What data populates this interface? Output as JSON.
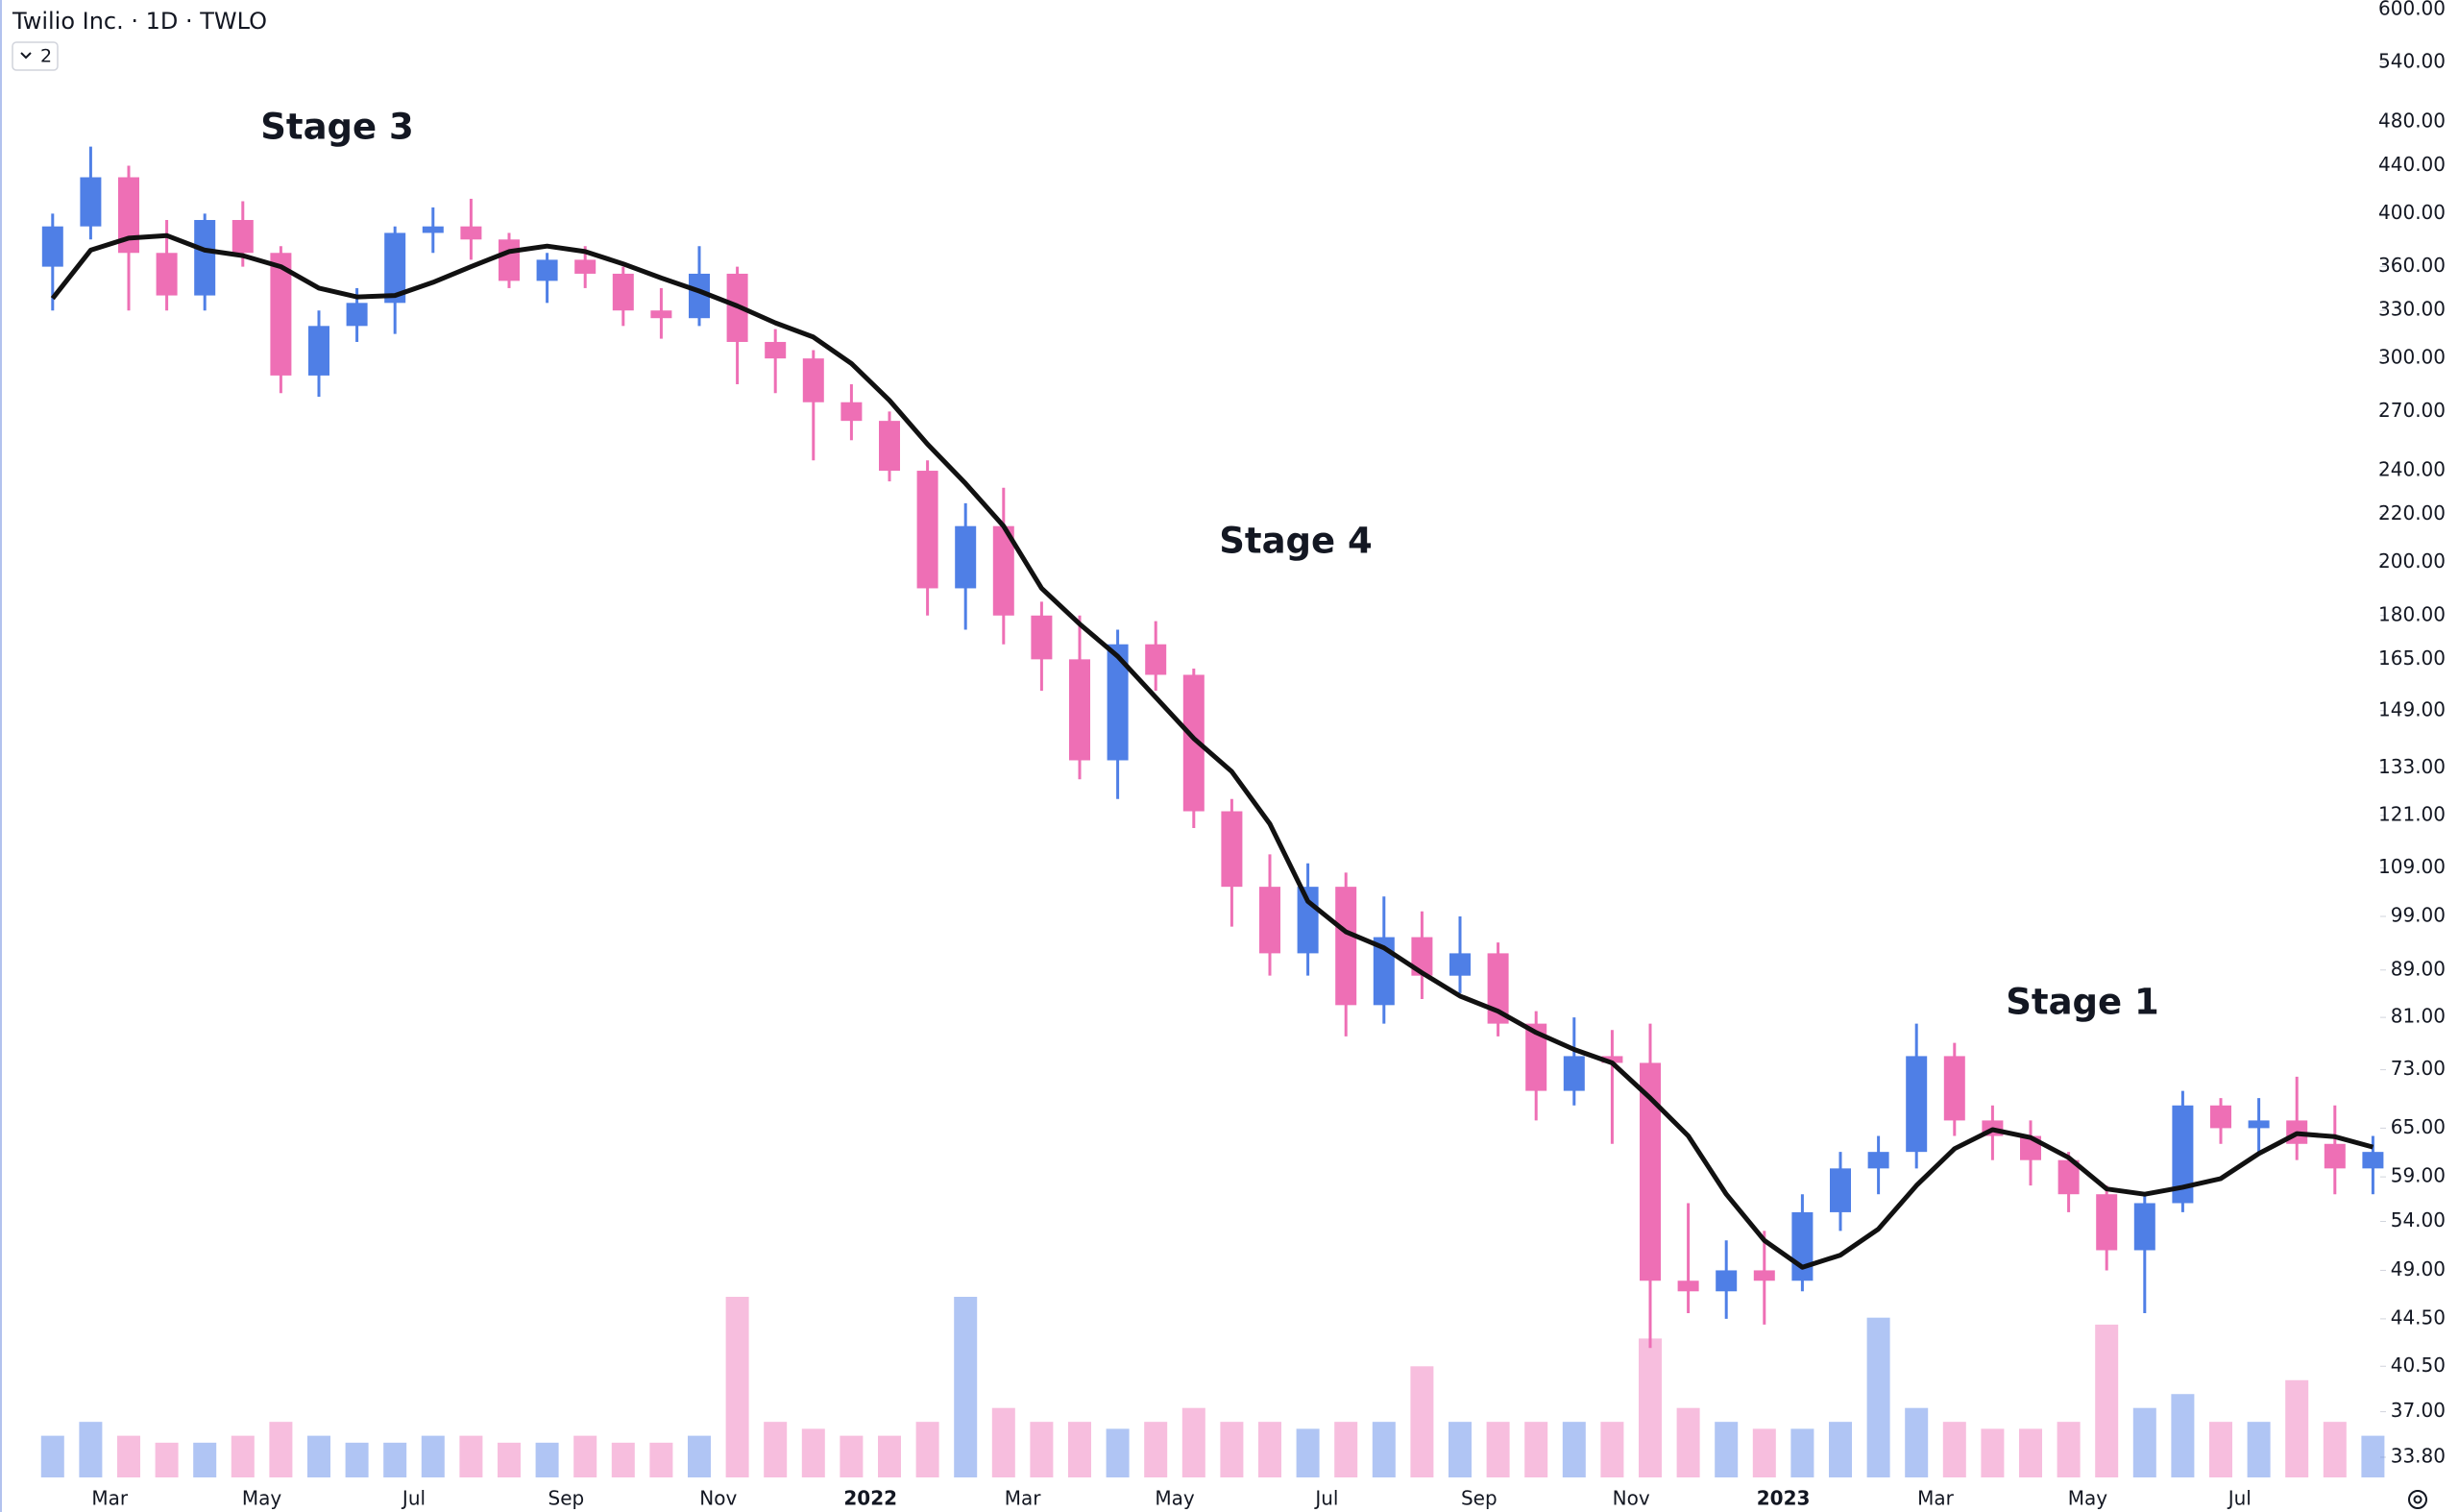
{
  "chart_data": {
    "type": "candlestick",
    "title": "Twilio Inc. · 1D · TWLO",
    "legend_badge": "2",
    "log_scale": true,
    "categories": [
      null,
      null,
      "Mar",
      null,
      null,
      null,
      "May",
      null,
      null,
      null,
      "Jul",
      null,
      null,
      null,
      "Sep",
      null,
      null,
      null,
      "Nov",
      null,
      null,
      null,
      "2022",
      null,
      null,
      null,
      "Mar",
      null,
      null,
      null,
      "May",
      null,
      null,
      null,
      "Jul",
      null,
      null,
      null,
      "Sep",
      null,
      null,
      null,
      "Nov",
      null,
      null,
      null,
      "2023",
      null,
      null,
      null,
      "Mar",
      null,
      null,
      null,
      "May",
      null,
      null,
      null,
      "Jul",
      null,
      null,
      null
    ],
    "open": [
      360,
      390,
      430,
      370,
      340,
      395,
      370,
      290,
      320,
      335,
      385,
      390,
      380,
      350,
      365,
      355,
      330,
      325,
      355,
      310,
      300,
      275,
      265,
      240,
      190,
      215,
      180,
      165,
      135,
      170,
      160,
      122,
      105,
      92,
      105,
      83,
      95,
      88,
      92,
      80,
      70,
      75,
      74,
      48,
      47,
      49,
      48,
      55,
      60,
      62,
      75,
      66,
      64,
      61,
      57,
      51,
      56,
      68,
      65,
      66,
      63,
      60
    ],
    "high": [
      400,
      457,
      440,
      395,
      400,
      410,
      375,
      330,
      345,
      390,
      405,
      412,
      385,
      370,
      375,
      360,
      345,
      375,
      360,
      318,
      305,
      285,
      270,
      245,
      225,
      232,
      185,
      180,
      175,
      178,
      162,
      125,
      112,
      110,
      108,
      103,
      100,
      99,
      94,
      82,
      81,
      79,
      80,
      56,
      52,
      53,
      57,
      62,
      64,
      80,
      77,
      68,
      66,
      62,
      58,
      57,
      70,
      69,
      69,
      72,
      68,
      64
    ],
    "low": [
      330,
      380,
      330,
      330,
      330,
      360,
      280,
      278,
      310,
      315,
      370,
      365,
      345,
      335,
      345,
      320,
      312,
      320,
      285,
      280,
      245,
      255,
      235,
      180,
      175,
      170,
      155,
      130,
      125,
      155,
      118,
      97,
      88,
      88,
      78,
      80,
      84,
      85,
      78,
      66,
      68,
      63,
      42,
      45,
      44.5,
      44,
      47,
      53,
      57,
      60,
      64,
      61,
      58,
      55,
      49,
      45,
      55,
      63,
      62,
      61,
      57,
      57
    ],
    "close": [
      390,
      430,
      370,
      340,
      395,
      370,
      290,
      320,
      335,
      385,
      390,
      380,
      350,
      365,
      355,
      330,
      325,
      355,
      310,
      300,
      275,
      265,
      240,
      190,
      215,
      180,
      165,
      135,
      170,
      160,
      122,
      105,
      92,
      105,
      83,
      95,
      88,
      92,
      80,
      70,
      75,
      74,
      48,
      47,
      49,
      48,
      55,
      60,
      62,
      75,
      66,
      64,
      61,
      57,
      51,
      56,
      68,
      65,
      66,
      63,
      60,
      62
    ],
    "moving_average": [
      338,
      372,
      381,
      383,
      372,
      368,
      360,
      345,
      339,
      340,
      349,
      360,
      371,
      375,
      371,
      362,
      352,
      343,
      333,
      322,
      313,
      297,
      276,
      253,
      234,
      215,
      190,
      177,
      166,
      153,
      141,
      132,
      119,
      102,
      96,
      93,
      88.5,
      84.5,
      82,
      78.6,
      76,
      74,
      69,
      64,
      57,
      52,
      49.3,
      50.5,
      53.2,
      58,
      62.4,
      64.8,
      63.8,
      61.3,
      57.6,
      57,
      57.8,
      58.8,
      61.8,
      64.3,
      63.9,
      62.6
    ],
    "volume": [
      3,
      4,
      3,
      2.5,
      2.5,
      3,
      4,
      3,
      2.5,
      2.5,
      3,
      3,
      2.5,
      2.5,
      3,
      2.5,
      2.5,
      3,
      13,
      4,
      3.5,
      3,
      3,
      4,
      13,
      5,
      4,
      4,
      3.5,
      4,
      5,
      4,
      4,
      3.5,
      4,
      4,
      8,
      4,
      4,
      4,
      4,
      4,
      10,
      5,
      4,
      3.5,
      3.5,
      4,
      11.5,
      5,
      4,
      3.5,
      3.5,
      4,
      11,
      5,
      6,
      4,
      4,
      7,
      4,
      3
    ],
    "up_color": "#4f7fe6",
    "down_color": "#ee6fb5",
    "ma_color": "#111111",
    "ylim": [
      33.8,
      600
    ],
    "yticks": [
      {
        "value": 600,
        "label": "600.00"
      },
      {
        "value": 540,
        "label": "540.00"
      },
      {
        "value": 480,
        "label": "480.00"
      },
      {
        "value": 440,
        "label": "440.00"
      },
      {
        "value": 400,
        "label": "400.00"
      },
      {
        "value": 360,
        "label": "360.00"
      },
      {
        "value": 330,
        "label": "330.00"
      },
      {
        "value": 300,
        "label": "300.00"
      },
      {
        "value": 270,
        "label": "270.00"
      },
      {
        "value": 240,
        "label": "240.00"
      },
      {
        "value": 220,
        "label": "220.00"
      },
      {
        "value": 200,
        "label": "200.00"
      },
      {
        "value": 180,
        "label": "180.00"
      },
      {
        "value": 165,
        "label": "165.00"
      },
      {
        "value": 149,
        "label": "149.00"
      },
      {
        "value": 133,
        "label": "133.00"
      },
      {
        "value": 121,
        "label": "121.00"
      },
      {
        "value": 109,
        "label": "109.00"
      },
      {
        "value": 99,
        "label": "99.00"
      },
      {
        "value": 89,
        "label": "89.00"
      },
      {
        "value": 81,
        "label": "81.00"
      },
      {
        "value": 73,
        "label": "73.00"
      },
      {
        "value": 65,
        "label": "65.00"
      },
      {
        "value": 59,
        "label": "59.00"
      },
      {
        "value": 54,
        "label": "54.00"
      },
      {
        "value": 49,
        "label": "49.00"
      },
      {
        "value": 44.5,
        "label": "44.50"
      },
      {
        "value": 40.5,
        "label": "40.50"
      },
      {
        "value": 37,
        "label": "37.00"
      },
      {
        "value": 33.8,
        "label": "33.80"
      }
    ],
    "annotations": [
      "Stage 3",
      "Stage 4",
      "Stage 1"
    ]
  }
}
